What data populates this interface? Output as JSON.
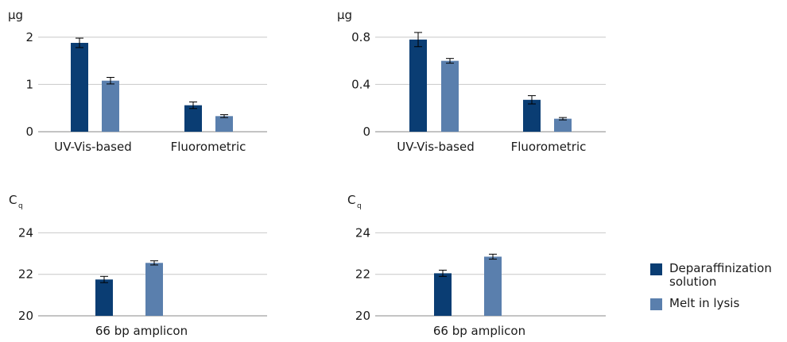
{
  "colors": {
    "series1": "#0a3d73",
    "series2": "#5a7fad",
    "grid": "#c8c8c8",
    "axis": "#8a8a8a",
    "errorbar": "#000000"
  },
  "legend": {
    "items": [
      {
        "label_line1": "Deparaffinization",
        "label_line2": "solution"
      },
      {
        "label_line1": "Melt in lysis",
        "label_line2": ""
      }
    ]
  },
  "chart_data": [
    {
      "type": "bar",
      "unit_label": "µg",
      "unit_sub": "",
      "ylim": [
        0,
        2.3
      ],
      "yticks": [
        0,
        1,
        2
      ],
      "ytick_labels": [
        "0",
        "1",
        "2"
      ],
      "categories": [
        "UV-Vis-based",
        "Fluorometric"
      ],
      "series": [
        {
          "name": "Deparaffinization solution",
          "values": [
            1.88,
            0.56
          ],
          "errors": [
            0.1,
            0.07
          ]
        },
        {
          "name": "Melt in lysis",
          "values": [
            1.08,
            0.33
          ],
          "errors": [
            0.07,
            0.03
          ]
        }
      ],
      "grid": true
    },
    {
      "type": "bar",
      "unit_label": "µg",
      "unit_sub": "",
      "ylim": [
        0,
        0.92
      ],
      "yticks": [
        0,
        0.4,
        0.8
      ],
      "ytick_labels": [
        "0",
        "0.4",
        "0.8"
      ],
      "categories": [
        "UV-Vis-based",
        "Fluorometric"
      ],
      "series": [
        {
          "name": "Deparaffinization solution",
          "values": [
            0.78,
            0.27
          ],
          "errors": [
            0.06,
            0.035
          ]
        },
        {
          "name": "Melt in lysis",
          "values": [
            0.6,
            0.11
          ],
          "errors": [
            0.02,
            0.01
          ]
        }
      ],
      "grid": true
    },
    {
      "type": "bar",
      "unit_label": "C",
      "unit_sub": "q",
      "ylim": [
        20,
        25.2
      ],
      "yticks": [
        20,
        22,
        24
      ],
      "ytick_labels": [
        "20",
        "22",
        "24"
      ],
      "categories": [
        "66 bp amplicon"
      ],
      "series": [
        {
          "name": "Deparaffinization solution",
          "values": [
            21.75
          ],
          "errors": [
            0.15
          ]
        },
        {
          "name": "Melt in lysis",
          "values": [
            22.55
          ],
          "errors": [
            0.1
          ]
        }
      ],
      "grid": true
    },
    {
      "type": "bar",
      "unit_label": "C",
      "unit_sub": "q",
      "ylim": [
        20,
        25.2
      ],
      "yticks": [
        20,
        22,
        24
      ],
      "ytick_labels": [
        "20",
        "22",
        "24"
      ],
      "categories": [
        "66 bp amplicon"
      ],
      "series": [
        {
          "name": "Deparaffinization solution",
          "values": [
            22.05
          ],
          "errors": [
            0.15
          ]
        },
        {
          "name": "Melt in lysis",
          "values": [
            22.85
          ],
          "errors": [
            0.12
          ]
        }
      ],
      "grid": true
    }
  ]
}
